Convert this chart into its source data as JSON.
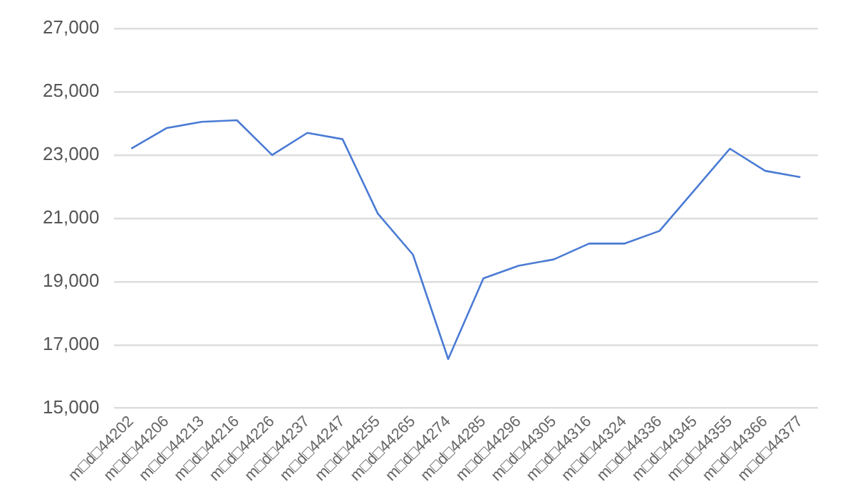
{
  "chart_data": {
    "type": "line",
    "categories": [
      "m□d□44202",
      "m□d□44206",
      "m□d□44213",
      "m□d□44216",
      "m□d□44226",
      "m□d□44237",
      "m□d□44247",
      "m□d□44255",
      "m□d□44265",
      "m□d□44274",
      "m□d□44285",
      "m□d□44296",
      "m□d□44305",
      "m□d□44316",
      "m□d□44324",
      "m□d□44336",
      "m□d□44345",
      "m□d□44355",
      "m□d□44366",
      "m□d□44377"
    ],
    "series": [
      {
        "color": "#4a7bd4",
        "values": [
          23200,
          23850,
          24050,
          24100,
          23000,
          23700,
          23500,
          21150,
          19850,
          16550,
          19100,
          19500,
          19700,
          20200,
          20200,
          20600,
          21900,
          23200,
          22500,
          22300
        ]
      }
    ],
    "ylim": [
      15000,
      27000
    ],
    "yticks": [
      {
        "value": 15000,
        "label": "15,000"
      },
      {
        "value": 17000,
        "label": "17,000"
      },
      {
        "value": 19000,
        "label": "19,000"
      },
      {
        "value": 21000,
        "label": "21,000"
      },
      {
        "value": 23000,
        "label": "23,000"
      },
      {
        "value": 25000,
        "label": "25,000"
      },
      {
        "value": 27000,
        "label": "27,000"
      }
    ],
    "grid": "y",
    "legend": false,
    "marker": "none",
    "line_style": "solid"
  }
}
